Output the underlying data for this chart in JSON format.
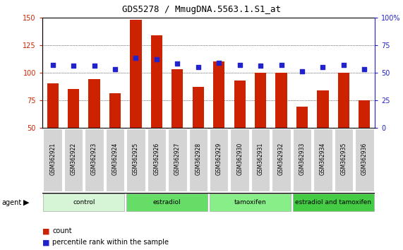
{
  "title": "GDS5278 / MmugDNA.5563.1.S1_at",
  "samples": [
    "GSM362921",
    "GSM362922",
    "GSM362923",
    "GSM362924",
    "GSM362925",
    "GSM362926",
    "GSM362927",
    "GSM362928",
    "GSM362929",
    "GSM362930",
    "GSM362931",
    "GSM362932",
    "GSM362933",
    "GSM362934",
    "GSM362935",
    "GSM362936"
  ],
  "counts": [
    90,
    85,
    94,
    81,
    148,
    134,
    103,
    87,
    110,
    93,
    100,
    100,
    69,
    84,
    100,
    75
  ],
  "percentiles": [
    107,
    106,
    106,
    103,
    113,
    112,
    108,
    105,
    109,
    107,
    106,
    107,
    101,
    105,
    107,
    103
  ],
  "groups": [
    {
      "label": "control",
      "start": 0,
      "end": 4,
      "color": "#d6f5d6"
    },
    {
      "label": "estradiol",
      "start": 4,
      "end": 8,
      "color": "#66dd66"
    },
    {
      "label": "tamoxifen",
      "start": 8,
      "end": 12,
      "color": "#88ee88"
    },
    {
      "label": "estradiol and tamoxifen",
      "start": 12,
      "end": 16,
      "color": "#44cc44"
    }
  ],
  "ylim_left": [
    50,
    150
  ],
  "ylim_right": [
    0,
    100
  ],
  "yticks_left": [
    50,
    75,
    100,
    125,
    150
  ],
  "yticks_right": [
    0,
    25,
    50,
    75,
    100
  ],
  "bar_color": "#cc2200",
  "dot_color": "#2222cc",
  "bar_bottom": 50,
  "legend_count_label": "count",
  "legend_pct_label": "percentile rank within the sample",
  "plot_bg": "#ffffff",
  "xtick_bg": "#cccccc"
}
